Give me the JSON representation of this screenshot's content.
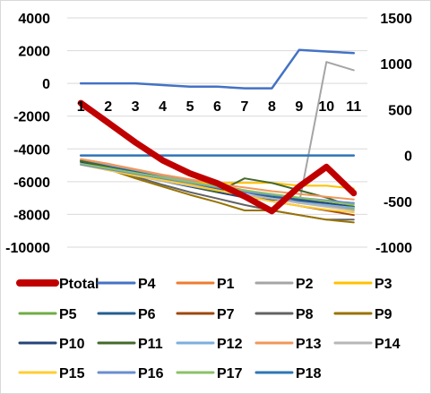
{
  "chart_data": {
    "type": "line",
    "title": "",
    "xlabel": "",
    "ylabel": "",
    "categories": [
      "1",
      "2",
      "3",
      "4",
      "5",
      "6",
      "7",
      "8",
      "9",
      "10",
      "11"
    ],
    "y_left": {
      "range": [
        -10000,
        4000
      ],
      "ticks": [
        "4000",
        "2000",
        "0",
        "-2000",
        "-4000",
        "-6000",
        "-8000",
        "-10000"
      ]
    },
    "y_right": {
      "range": [
        -1000,
        1500
      ],
      "ticks": [
        "1500",
        "1000",
        "500",
        "0",
        "-500",
        "-1000"
      ]
    },
    "grid": "horizontal",
    "legend_position": "bottom",
    "series": [
      {
        "name": "Ptotal",
        "color": "#c00000",
        "axis": "left",
        "width": 7,
        "values": [
          -1200,
          -2400,
          -3600,
          -4700,
          -5500,
          -6100,
          -6900,
          -7800,
          -6300,
          -5100,
          -6700
        ]
      },
      {
        "name": "P4",
        "color": "#4472c4",
        "axis": "left",
        "width": 2.5,
        "values": [
          0,
          0,
          0,
          -100,
          -200,
          -200,
          -300,
          -300,
          2050,
          1950,
          1850
        ]
      },
      {
        "name": "P1",
        "color": "#ed7d31",
        "axis": "right",
        "width": 2,
        "values": [
          -40,
          -90,
          -170,
          -220,
          -270,
          -320,
          -380,
          -430,
          -490,
          -550,
          -600
        ]
      },
      {
        "name": "P2",
        "color": "#a5a5a5",
        "axis": "right",
        "width": 2,
        "values": [
          -50,
          -100,
          -160,
          -220,
          -280,
          -340,
          -400,
          -460,
          -520,
          1020,
          930
        ]
      },
      {
        "name": "P3",
        "color": "#ffc000",
        "axis": "right",
        "width": 2,
        "values": [
          -100,
          -150,
          -200,
          -250,
          -300,
          -300,
          -300,
          -300,
          -330,
          -330,
          -360
        ]
      },
      {
        "name": "P5",
        "color": "#70ad47",
        "axis": "right",
        "width": 2,
        "values": [
          -80,
          -140,
          -200,
          -250,
          -300,
          -340,
          -380,
          -430,
          -480,
          -530,
          -580
        ]
      },
      {
        "name": "P6",
        "color": "#255e91",
        "axis": "right",
        "width": 2,
        "values": [
          -60,
          -120,
          -180,
          -240,
          -300,
          -360,
          -400,
          -450,
          -480,
          -500,
          -520
        ]
      },
      {
        "name": "P7",
        "color": "#9e480e",
        "axis": "right",
        "width": 2,
        "values": [
          -60,
          -130,
          -200,
          -260,
          -320,
          -380,
          -440,
          -500,
          -550,
          -600,
          -650
        ]
      },
      {
        "name": "P8",
        "color": "#636363",
        "axis": "right",
        "width": 2,
        "values": [
          -60,
          -150,
          -230,
          -320,
          -400,
          -470,
          -540,
          -600,
          -650,
          -700,
          -700
        ]
      },
      {
        "name": "P9",
        "color": "#997300",
        "axis": "right",
        "width": 2,
        "values": [
          -60,
          -150,
          -250,
          -340,
          -430,
          -510,
          -600,
          -600,
          -650,
          -700,
          -730
        ]
      },
      {
        "name": "P10",
        "color": "#264478",
        "axis": "right",
        "width": 2,
        "values": [
          -70,
          -140,
          -210,
          -280,
          -340,
          -400,
          -460,
          -480,
          -500,
          -520,
          -560
        ]
      },
      {
        "name": "P11",
        "color": "#43682b",
        "axis": "right",
        "width": 2,
        "values": [
          -60,
          -130,
          -200,
          -260,
          -330,
          -400,
          -250,
          -300,
          -380,
          -460,
          -560
        ]
      },
      {
        "name": "P12",
        "color": "#7cafdd",
        "axis": "right",
        "width": 2,
        "values": [
          -100,
          -160,
          -220,
          -280,
          -330,
          -380,
          -430,
          -470,
          -510,
          -540,
          -570
        ]
      },
      {
        "name": "P13",
        "color": "#f1975a",
        "axis": "right",
        "width": 2,
        "values": [
          -40,
          -90,
          -150,
          -210,
          -260,
          -310,
          -350,
          -390,
          -420,
          -450,
          -480
        ]
      },
      {
        "name": "P14",
        "color": "#b7b7b7",
        "axis": "right",
        "width": 2,
        "values": [
          -100,
          -160,
          -220,
          -280,
          -330,
          -380,
          -430,
          -470,
          -520,
          -560,
          -600
        ]
      },
      {
        "name": "P15",
        "color": "#ffcd33",
        "axis": "right",
        "width": 2,
        "values": [
          -100,
          -160,
          -220,
          -270,
          -320,
          -380,
          -440,
          -500,
          -550,
          -590,
          -620
        ]
      },
      {
        "name": "P16",
        "color": "#698ed0",
        "axis": "right",
        "width": 2,
        "values": [
          -100,
          -150,
          -200,
          -250,
          -300,
          -350,
          -400,
          -430,
          -460,
          -490,
          -520
        ]
      },
      {
        "name": "P17",
        "color": "#8cc168",
        "axis": "right",
        "width": 2,
        "values": [
          -90,
          -140,
          -190,
          -240,
          -290,
          -340,
          -380,
          -420,
          -460,
          -500,
          -540
        ]
      },
      {
        "name": "P18",
        "color": "#2e75b6",
        "axis": "right",
        "width": 2.5,
        "values": [
          0,
          0,
          0,
          0,
          0,
          0,
          0,
          0,
          0,
          0,
          0
        ]
      }
    ]
  }
}
